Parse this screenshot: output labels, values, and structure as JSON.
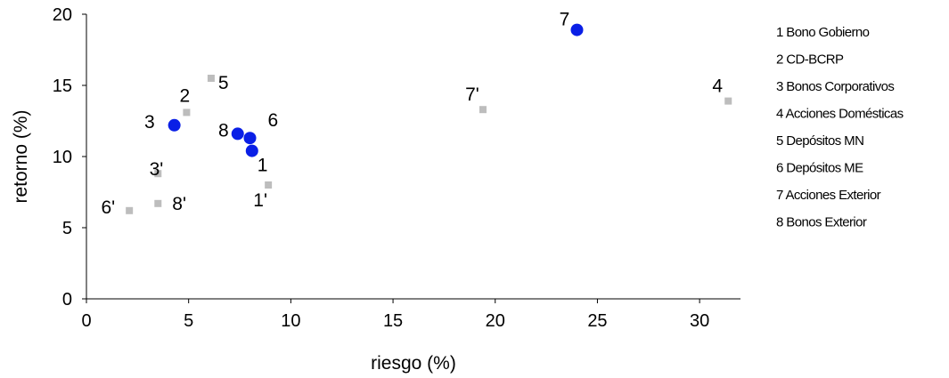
{
  "chart_data": {
    "type": "scatter",
    "xlabel": "riesgo (%)",
    "ylabel": "retorno (%)",
    "xlim": [
      0,
      32
    ],
    "ylim": [
      0,
      20
    ],
    "x_ticks": [
      0,
      5,
      10,
      15,
      20,
      25,
      30
    ],
    "y_ticks": [
      0,
      5,
      10,
      15,
      20
    ],
    "grid": false,
    "legend_position": "right",
    "series": [
      {
        "marker": "circle",
        "color": "#0a1fe6",
        "points": [
          {
            "label": "3",
            "x": 4.3,
            "y": 12.2
          },
          {
            "label": "8",
            "x": 7.4,
            "y": 11.6
          },
          {
            "label": "6",
            "x": 8.0,
            "y": 11.3
          },
          {
            "label": "1",
            "x": 8.1,
            "y": 10.4
          },
          {
            "label": "7",
            "x": 24.0,
            "y": 18.9
          }
        ]
      },
      {
        "marker": "square",
        "color": "#bdbdbd",
        "points": [
          {
            "label": "2",
            "x": 4.9,
            "y": 13.1
          },
          {
            "label": "5",
            "x": 6.1,
            "y": 15.5
          },
          {
            "label": "3'",
            "x": 3.5,
            "y": 8.8
          },
          {
            "label": "6'",
            "x": 2.1,
            "y": 6.2
          },
          {
            "label": "8'",
            "x": 3.5,
            "y": 6.7
          },
          {
            "label": "1'",
            "x": 8.9,
            "y": 8.0
          },
          {
            "label": "7'",
            "x": 19.4,
            "y": 13.3
          },
          {
            "label": "4",
            "x": 31.4,
            "y": 13.9
          }
        ]
      }
    ],
    "legend_entries": [
      "1 Bono Gobierno",
      "2 CD-BCRP",
      "3 Bonos Corporativos",
      "4 Acciones Domésticas",
      "5 Depósitos MN",
      "6 Depósitos ME",
      "7 Acciones Exterior",
      "8 Bonos Exterior"
    ]
  }
}
